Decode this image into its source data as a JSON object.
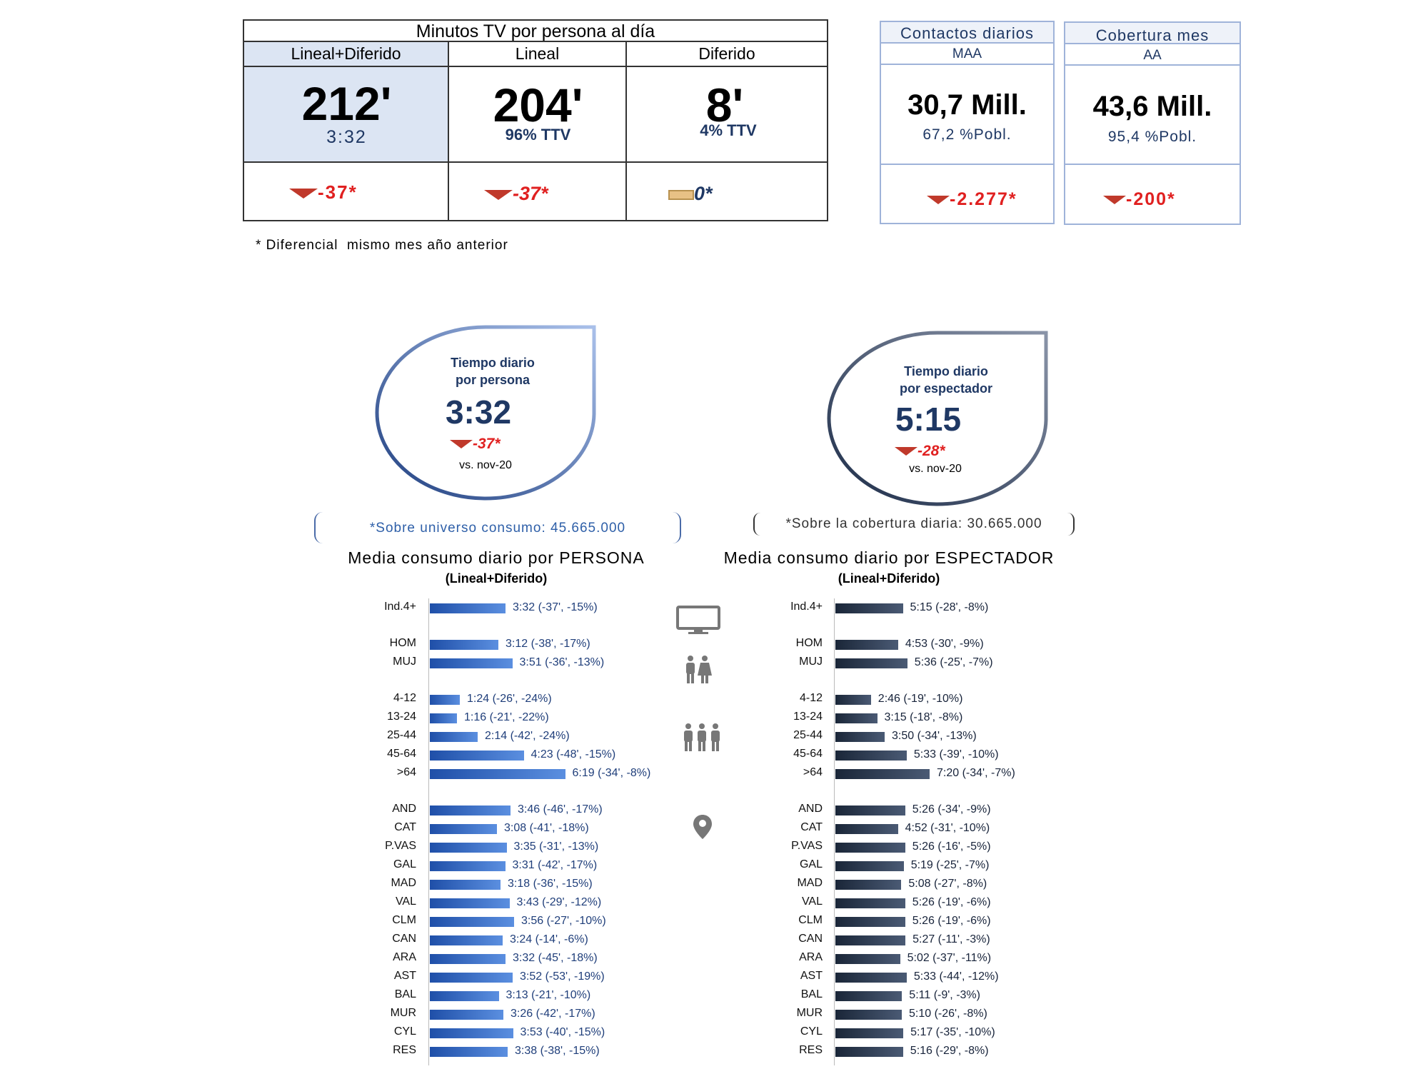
{
  "header_table": {
    "title": "Minutos TV por persona al día",
    "columns": [
      {
        "name": "Lineal+Diferido",
        "value": "212'",
        "sub": "3:32",
        "delta": "-37*"
      },
      {
        "name": "Lineal",
        "value": "204'",
        "sub": "96% TTV",
        "delta": "-37*"
      },
      {
        "name": "Diferido",
        "value": "8'",
        "sub": "4% TTV",
        "delta": "0*"
      }
    ],
    "footnote": "* Diferencial  mismo mes año anterior"
  },
  "contactos": {
    "title": "Contactos diarios",
    "sub": "MAA",
    "value": "30,7 Mill.",
    "pct": "67,2 %Pobl.",
    "delta": "-2.277*"
  },
  "cobertura": {
    "title": "Cobertura mes",
    "sub": "AA",
    "value": "43,6 Mill.",
    "pct": "95,4 %Pobl.",
    "delta": "-200*"
  },
  "drop_persona": {
    "title1": "Tiempo diario",
    "title2": "por persona",
    "value": "3:32",
    "delta": "-37*",
    "vs": "vs. nov-20"
  },
  "drop_espectador": {
    "title1": "Tiempo diario",
    "title2": "por espectador",
    "value": "5:15",
    "delta": "-28*",
    "vs": "vs. nov-20"
  },
  "universo_note": "*Sobre universo consumo: 45.665.000",
  "cobertura_note": "*Sobre la cobertura diaria: 30.665.000",
  "chart_data": [
    {
      "type": "bar",
      "title": "Media consumo diario por PERSONA",
      "subtitle": "(Lineal+Diferido)",
      "color": "#2e5fb8",
      "categories": [
        "Ind.4+",
        "HOM",
        "MUJ",
        "4-12",
        "13-24",
        "25-44",
        "45-64",
        ">64",
        "AND",
        "CAT",
        "P.VAS",
        "GAL",
        "MAD",
        "VAL",
        "CLM",
        "CAN",
        "ARA",
        "AST",
        "BAL",
        "MUR",
        "CYL",
        "RES"
      ],
      "values": [
        212,
        192,
        231,
        84,
        76,
        134,
        263,
        379,
        226,
        188,
        215,
        211,
        198,
        223,
        236,
        204,
        212,
        232,
        193,
        206,
        233,
        218
      ],
      "labels": [
        "3:32 (-37', -15%)",
        "3:12 (-38', -17%)",
        "3:51 (-36', -13%)",
        "1:24 (-26', -24%)",
        "1:16 (-21', -22%)",
        "2:14 (-42', -24%)",
        "4:23 (-48', -15%)",
        "6:19 (-34', -8%)",
        "3:46 (-46', -17%)",
        "3:08 (-41', -18%)",
        "3:35 (-31', -13%)",
        "3:31 (-42', -17%)",
        "3:18 (-36', -15%)",
        "3:43 (-29', -12%)",
        "3:56 (-27', -10%)",
        "3:24 (-14', -6%)",
        "3:32 (-45', -18%)",
        "3:52 (-53', -19%)",
        "3:13 (-21', -10%)",
        "3:26 (-42', -17%)",
        "3:53 (-40', -15%)",
        "3:38 (-38', -15%)"
      ]
    },
    {
      "type": "bar",
      "title": "Media consumo diario por ESPECTADOR",
      "subtitle": "(Lineal+Diferido)",
      "color": "#2b3a52",
      "categories": [
        "Ind.4+",
        "HOM",
        "MUJ",
        "4-12",
        "13-24",
        "25-44",
        "45-64",
        ">64",
        "AND",
        "CAT",
        "P.VAS",
        "GAL",
        "MAD",
        "VAL",
        "CLM",
        "CAN",
        "ARA",
        "AST",
        "BAL",
        "MUR",
        "CYL",
        "RES"
      ],
      "values": [
        315,
        293,
        336,
        166,
        195,
        230,
        333,
        440,
        326,
        292,
        326,
        319,
        308,
        326,
        326,
        327,
        302,
        333,
        311,
        310,
        317,
        316
      ],
      "labels": [
        "5:15 (-28', -8%)",
        "4:53 (-30', -9%)",
        "5:36 (-25', -7%)",
        "2:46 (-19', -10%)",
        "3:15 (-18', -8%)",
        "3:50 (-34', -13%)",
        "5:33 (-39', -10%)",
        "7:20 (-34', -7%)",
        "5:26 (-34', -9%)",
        "4:52 (-31', -10%)",
        "5:26 (-16', -5%)",
        "5:19 (-25', -7%)",
        "5:08 (-27', -8%)",
        "5:26 (-19', -6%)",
        "5:26 (-19', -6%)",
        "5:27 (-11', -3%)",
        "5:02 (-37', -11%)",
        "5:33 (-44', -12%)",
        "5:11 (-9', -3%)",
        "5:10 (-26', -8%)",
        "5:17 (-35', -10%)",
        "5:16 (-29', -8%)"
      ]
    }
  ],
  "icons": [
    "tv-icon",
    "couple-icon",
    "group-icon",
    "location-pin-icon"
  ]
}
